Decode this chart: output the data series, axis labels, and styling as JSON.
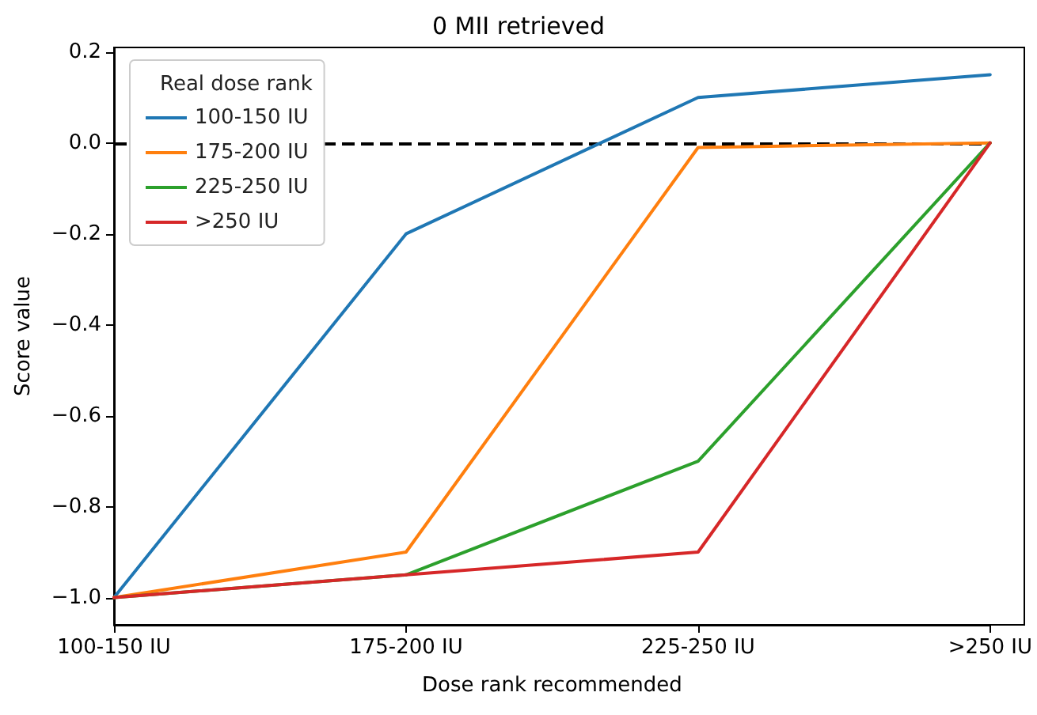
{
  "chart_data": {
    "type": "line",
    "title": "0 MII retrieved",
    "xlabel": "Dose rank recommended",
    "ylabel": "Score value",
    "legend_title": "Real dose rank",
    "categories": [
      "100-150 IU",
      "175-200 IU",
      "225-250 IU",
      ">250 IU"
    ],
    "series": [
      {
        "name": "100-150 IU",
        "color": "#1f77b4",
        "values": [
          -1.0,
          -0.2,
          0.1,
          0.15
        ]
      },
      {
        "name": "175-200 IU",
        "color": "#ff7f0e",
        "values": [
          -1.0,
          -0.9,
          -0.01,
          0.0
        ]
      },
      {
        "name": "225-250 IU",
        "color": "#2ca02c",
        "values": [
          -1.0,
          -0.95,
          -0.7,
          0.0
        ]
      },
      {
        "name": ">250 IU",
        "color": "#d62728",
        "values": [
          -1.0,
          -0.95,
          -0.9,
          0.0
        ]
      }
    ],
    "ylim": [
      -1.06,
      0.21
    ],
    "yticks": [
      {
        "value": -1.0,
        "label": "−1.0"
      },
      {
        "value": -0.8,
        "label": "−0.8"
      },
      {
        "value": -0.6,
        "label": "−0.6"
      },
      {
        "value": -0.4,
        "label": "−0.4"
      },
      {
        "value": -0.2,
        "label": "−0.2"
      },
      {
        "value": 0.0,
        "label": "0.0"
      },
      {
        "value": 0.2,
        "label": "0.2"
      }
    ],
    "ref_lines": [
      {
        "axis": "y",
        "value": 0,
        "color": "#000000",
        "line_style": "dashed"
      }
    ],
    "legend": "top left",
    "grid": false,
    "marker": "none",
    "line_style": "solid"
  }
}
